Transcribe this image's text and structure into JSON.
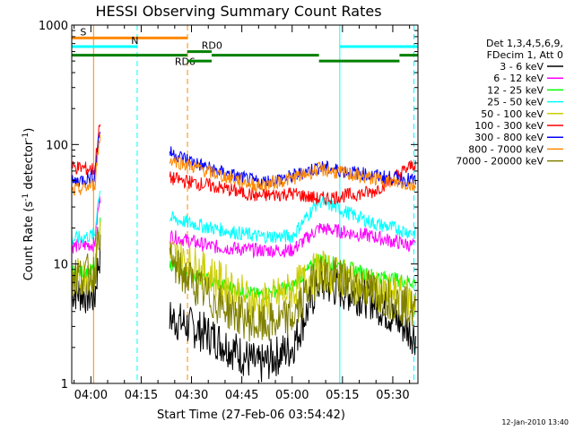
{
  "chart_data": {
    "type": "line",
    "title": "HESSI Observing Summary Count Rates",
    "xlabel": "Start Time (27-Feb-06 03:54:42)",
    "ylabel_main": "Count Rate (s",
    "ylabel_sup1": "-1",
    "ylabel_mid": " detector",
    "ylabel_sup2": "-1",
    "ylabel_end": ")",
    "yscale": "log",
    "ylim": [
      1,
      1000
    ],
    "xlim_minutes": [
      -5.7,
      97.5
    ],
    "x_unit": "minutes after 04:00 UT",
    "y_ticks": [
      {
        "value": 1,
        "label": "1"
      },
      {
        "value": 10,
        "label": "10"
      },
      {
        "value": 100,
        "label": "100"
      },
      {
        "value": 1000,
        "label": "1000"
      }
    ],
    "x_ticks": [
      {
        "value": 0,
        "label": "04:00"
      },
      {
        "value": 15,
        "label": "04:15"
      },
      {
        "value": 30,
        "label": "04:30"
      },
      {
        "value": 45,
        "label": "04:45"
      },
      {
        "value": 60,
        "label": "05:00"
      },
      {
        "value": 75,
        "label": "05:15"
      },
      {
        "value": 90,
        "label": "05:30"
      }
    ],
    "legend_header": [
      "Det 1,3,4,5,6,9,",
      "FDecim 1, Att 0"
    ],
    "series": [
      {
        "name": "3 - 6 keV",
        "color": "#000000",
        "levels": [
          6.0,
          3.5,
          2.5,
          1.4,
          2.0,
          7.0,
          5.0,
          2.5
        ]
      },
      {
        "name": "6 - 12 keV",
        "color": "#ff00ff",
        "levels": [
          14,
          17,
          14,
          13,
          13,
          20,
          17,
          14
        ]
      },
      {
        "name": "12 - 25 keV",
        "color": "#00ff00",
        "levels": [
          8.5,
          10,
          7,
          5.5,
          6.5,
          11,
          8,
          7
        ]
      },
      {
        "name": "25 - 50 keV",
        "color": "#00ffff",
        "levels": [
          16,
          24,
          20,
          17,
          17,
          34,
          22,
          18
        ]
      },
      {
        "name": "50 - 100 keV",
        "color": "#cccc00",
        "levels": [
          7.5,
          12,
          8,
          4.5,
          6.0,
          9,
          6,
          5
        ]
      },
      {
        "name": "100 - 300 keV",
        "color": "#ff0000",
        "levels": [
          65,
          52,
          45,
          37,
          39,
          35,
          40,
          70
        ]
      },
      {
        "name": "300 - 800 keV",
        "color": "#0000ff",
        "levels": [
          48,
          85,
          62,
          48,
          54,
          65,
          55,
          50
        ]
      },
      {
        "name": "800 - 7000 keV",
        "color": "#ff8800",
        "levels": [
          40,
          75,
          58,
          45,
          52,
          62,
          52,
          45
        ]
      },
      {
        "name": "7000 - 20000 keV",
        "color": "#808000",
        "levels": [
          8.0,
          10,
          5,
          3,
          3.5,
          8.5,
          6,
          4
        ]
      }
    ],
    "segment_minutes": [
      [
        -5.7,
        2.8
      ],
      [
        23.5,
        96.8
      ]
    ],
    "vertical_markers": [
      {
        "t": 0.8,
        "color": "#ff8800",
        "dash": false
      },
      {
        "t": 13.8,
        "color": "#00ffff",
        "dash": true
      },
      {
        "t": 28.8,
        "color": "#ff8800",
        "dash": true
      },
      {
        "t": 74.2,
        "color": "#00ffff",
        "dash": false
      },
      {
        "t": 96.3,
        "color": "#00ffff",
        "dash": true
      }
    ],
    "flags": [
      {
        "label": "S",
        "color": "#ff8800",
        "y": 780,
        "t_start": -5.7,
        "t_end": 28.7,
        "label_t": -3.2
      },
      {
        "label": "N",
        "color": "#00ffff",
        "y": 660,
        "t_start": -5.7,
        "t_end": 13.8,
        "label_t": 12.0
      },
      {
        "label": "",
        "color": "#00ffff",
        "y": 660,
        "t_start": 74.2,
        "t_end": 97.5,
        "label_t": 0
      },
      {
        "label": "RD6",
        "color": "#008000",
        "y": 560,
        "t_start": -5.7,
        "t_end": 28.7,
        "label_t": 25.0
      },
      {
        "label": "RD0",
        "color": "#008000",
        "y": 600,
        "t_start": 28.7,
        "t_end": 36.0,
        "label_t": 33.0
      },
      {
        "label": "",
        "color": "#008000",
        "y": 500,
        "t_start": 28.7,
        "t_end": 36.0,
        "label_t": 0
      },
      {
        "label": "",
        "color": "#008000",
        "y": 560,
        "t_start": 36.0,
        "t_end": 68.0,
        "label_t": 0
      },
      {
        "label": "",
        "color": "#008000",
        "y": 500,
        "t_start": 68.0,
        "t_end": 92.0,
        "label_t": 0
      },
      {
        "label": "",
        "color": "#008000",
        "y": 560,
        "t_start": 92.0,
        "t_end": 97.5,
        "label_t": 0
      }
    ]
  },
  "timestamp": "12-Jan-2010 13:40"
}
